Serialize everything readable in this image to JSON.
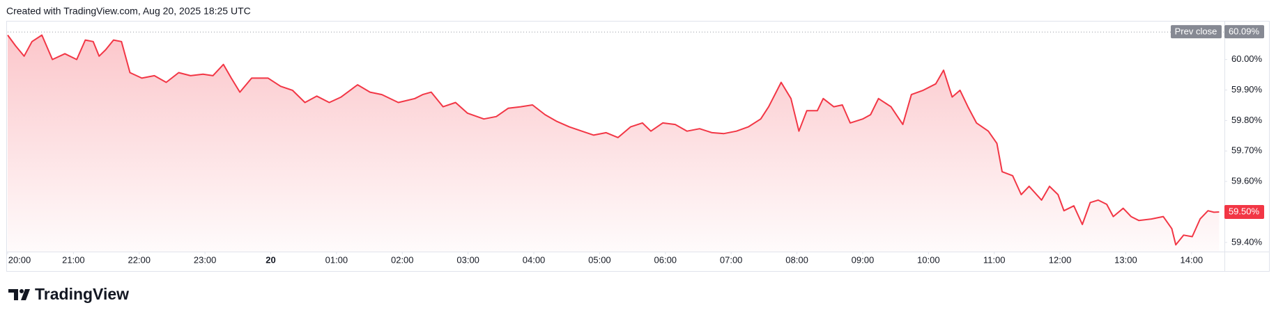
{
  "header": "Created with TradingView.com, Aug 20, 2025 18:25 UTC",
  "brand": "TradingView",
  "chart_data": {
    "type": "area",
    "color": "#f23645",
    "x": [
      0,
      0.12,
      0.25,
      0.37,
      0.52,
      0.68,
      0.87,
      1.05,
      1.18,
      1.3,
      1.39,
      1.49,
      1.61,
      1.73,
      1.86,
      2.04,
      2.23,
      2.41,
      2.6,
      2.78,
      2.97,
      3.12,
      3.28,
      3.4,
      3.53,
      3.71,
      3.96,
      4.15,
      4.33,
      4.52,
      4.7,
      4.89,
      5.07,
      5.32,
      5.51,
      5.69,
      5.94,
      6.19,
      6.31,
      6.44,
      6.62,
      6.81,
      6.99,
      7.24,
      7.43,
      7.61,
      7.8,
      7.98,
      8.17,
      8.35,
      8.54,
      8.73,
      8.91,
      9.1,
      9.28,
      9.47,
      9.65,
      9.78,
      9.96,
      10.15,
      10.33,
      10.52,
      10.71,
      10.89,
      11.08,
      11.26,
      11.45,
      11.57,
      11.76,
      11.91,
      12.03,
      12.15,
      12.31,
      12.4,
      12.56,
      12.69,
      12.81,
      13.0,
      13.12,
      13.24,
      13.43,
      13.61,
      13.74,
      13.92,
      14.11,
      14.23,
      14.36,
      14.48,
      14.6,
      14.73,
      14.91,
      15.04,
      15.12,
      15.28,
      15.41,
      15.53,
      15.72,
      15.84,
      15.97,
      16.06,
      16.21,
      16.34,
      16.46,
      16.58,
      16.71,
      16.81,
      16.96,
      17.08,
      17.2,
      17.39,
      17.57,
      17.7,
      17.76,
      17.88,
      18.01,
      18.13,
      18.25,
      18.34,
      18.42
    ],
    "values": [
      60.08,
      60.045,
      60.011,
      60.059,
      60.08,
      60.0,
      60.019,
      60.0,
      60.064,
      60.059,
      60.011,
      60.032,
      60.064,
      60.059,
      59.957,
      59.939,
      59.947,
      59.925,
      59.957,
      59.947,
      59.952,
      59.947,
      59.984,
      59.939,
      59.893,
      59.939,
      59.939,
      59.912,
      59.899,
      59.859,
      59.88,
      59.859,
      59.877,
      59.917,
      59.893,
      59.885,
      59.859,
      59.872,
      59.885,
      59.893,
      59.845,
      59.859,
      59.824,
      59.805,
      59.813,
      59.84,
      59.845,
      59.851,
      59.819,
      59.797,
      59.779,
      59.765,
      59.752,
      59.76,
      59.744,
      59.779,
      59.792,
      59.765,
      59.792,
      59.787,
      59.765,
      59.773,
      59.76,
      59.757,
      59.765,
      59.779,
      59.805,
      59.845,
      59.925,
      59.872,
      59.765,
      59.832,
      59.832,
      59.872,
      59.845,
      59.851,
      59.792,
      59.805,
      59.819,
      59.872,
      59.845,
      59.787,
      59.885,
      59.899,
      59.92,
      59.965,
      59.877,
      59.899,
      59.845,
      59.792,
      59.765,
      59.725,
      59.632,
      59.619,
      59.557,
      59.584,
      59.539,
      59.584,
      59.557,
      59.504,
      59.52,
      59.459,
      59.531,
      59.539,
      59.525,
      59.485,
      59.512,
      59.485,
      59.472,
      59.477,
      59.485,
      59.445,
      59.392,
      59.424,
      59.419,
      59.477,
      59.504,
      59.499,
      59.5
    ],
    "last_label": {
      "value": 59.5,
      "label": "59.50%"
    },
    "prev_close": {
      "name": "Prev close",
      "value": 60.09,
      "label": "60.09%"
    },
    "xlim": [
      0,
      18.5
    ],
    "xticks": [
      {
        "value": 0,
        "label": "20:00"
      },
      {
        "value": 1,
        "label": "21:00"
      },
      {
        "value": 2,
        "label": "22:00"
      },
      {
        "value": 3,
        "label": "23:00"
      },
      {
        "value": 4,
        "label": "20"
      },
      {
        "value": 5,
        "label": "01:00"
      },
      {
        "value": 6,
        "label": "02:00"
      },
      {
        "value": 7,
        "label": "03:00"
      },
      {
        "value": 8,
        "label": "04:00"
      },
      {
        "value": 9,
        "label": "05:00"
      },
      {
        "value": 10,
        "label": "06:00"
      },
      {
        "value": 11,
        "label": "07:00"
      },
      {
        "value": 12,
        "label": "08:00"
      },
      {
        "value": 13,
        "label": "09:00"
      },
      {
        "value": 14,
        "label": "10:00"
      },
      {
        "value": 15,
        "label": "11:00"
      },
      {
        "value": 16,
        "label": "12:00"
      },
      {
        "value": 17,
        "label": "13:00"
      },
      {
        "value": 18,
        "label": "14:00"
      }
    ],
    "bold_xtick": 4,
    "ylim": [
      59.37,
      60.12
    ],
    "yticks": [
      {
        "value": 59.4,
        "label": "59.40%"
      },
      {
        "value": 59.5,
        "label": "59.50%"
      },
      {
        "value": 59.6,
        "label": "59.60%"
      },
      {
        "value": 59.7,
        "label": "59.70%"
      },
      {
        "value": 59.8,
        "label": "59.80%"
      },
      {
        "value": 59.9,
        "label": "59.90%"
      },
      {
        "value": 60.0,
        "label": "60.00%"
      }
    ]
  }
}
